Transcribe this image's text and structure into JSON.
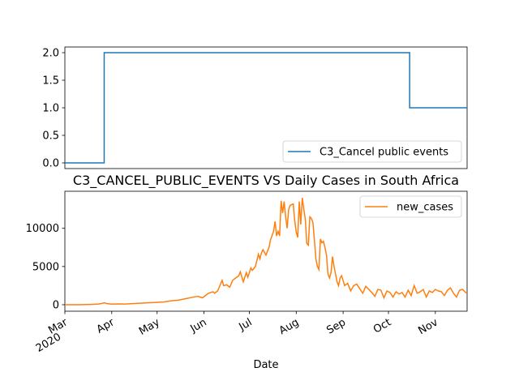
{
  "chart_data": [
    {
      "type": "line",
      "title": "",
      "xlabel": "",
      "ylabel": "",
      "ylim": [
        0,
        2
      ],
      "yticks": [
        0.0,
        0.5,
        1.0,
        1.5,
        2.0
      ],
      "ytick_labels": [
        "0.0",
        "0.5",
        "1.0",
        "1.5",
        "2.0"
      ],
      "legend_position": "bottom-right",
      "grid": false,
      "series": [
        {
          "name": "C3_Cancel public events",
          "color": "#1f77b4",
          "points": [
            [
              "2020-03-01",
              0
            ],
            [
              "2020-03-27",
              0
            ],
            [
              "2020-03-27",
              2
            ],
            [
              "2020-10-15",
              2
            ],
            [
              "2020-10-15",
              1
            ],
            [
              "2020-11-22",
              1
            ]
          ]
        }
      ]
    },
    {
      "type": "line",
      "title": "C3_CANCEL_PUBLIC_EVENTS VS Daily Cases in South Africa",
      "xlabel": "Date",
      "ylabel": "",
      "ylim": [
        0,
        14000
      ],
      "yticks": [
        0,
        5000,
        10000
      ],
      "ytick_labels": [
        "0",
        "5000",
        "10000"
      ],
      "xlim": [
        "2020-03-01",
        "2020-11-22"
      ],
      "xtick_labels": [
        {
          "date": "2020-03-01",
          "label": "Mar",
          "sublabel": "2020"
        },
        {
          "date": "2020-04-01",
          "label": "Apr"
        },
        {
          "date": "2020-05-01",
          "label": "May"
        },
        {
          "date": "2020-06-01",
          "label": "Jun"
        },
        {
          "date": "2020-07-01",
          "label": "Jul"
        },
        {
          "date": "2020-08-01",
          "label": "Aug"
        },
        {
          "date": "2020-09-01",
          "label": "Sep"
        },
        {
          "date": "2020-10-01",
          "label": "Oct"
        },
        {
          "date": "2020-11-01",
          "label": "Nov"
        }
      ],
      "legend_position": "top-right",
      "grid": false,
      "series": [
        {
          "name": "new_cases",
          "color": "#ff7f0e",
          "points": [
            [
              "2020-03-01",
              0
            ],
            [
              "2020-03-10",
              5
            ],
            [
              "2020-03-20",
              50
            ],
            [
              "2020-03-24",
              100
            ],
            [
              "2020-03-27",
              250
            ],
            [
              "2020-03-29",
              150
            ],
            [
              "2020-04-01",
              80
            ],
            [
              "2020-04-05",
              100
            ],
            [
              "2020-04-10",
              90
            ],
            [
              "2020-04-15",
              150
            ],
            [
              "2020-04-20",
              200
            ],
            [
              "2020-04-25",
              250
            ],
            [
              "2020-04-30",
              300
            ],
            [
              "2020-05-05",
              350
            ],
            [
              "2020-05-10",
              500
            ],
            [
              "2020-05-15",
              600
            ],
            [
              "2020-05-20",
              800
            ],
            [
              "2020-05-25",
              1000
            ],
            [
              "2020-05-28",
              1100
            ],
            [
              "2020-05-31",
              900
            ],
            [
              "2020-06-04",
              1500
            ],
            [
              "2020-06-07",
              1700
            ],
            [
              "2020-06-08",
              1500
            ],
            [
              "2020-06-10",
              1800
            ],
            [
              "2020-06-13",
              3200
            ],
            [
              "2020-06-14",
              2500
            ],
            [
              "2020-06-16",
              2600
            ],
            [
              "2020-06-18",
              2300
            ],
            [
              "2020-06-20",
              3200
            ],
            [
              "2020-06-22",
              3500
            ],
            [
              "2020-06-24",
              3800
            ],
            [
              "2020-06-25",
              4300
            ],
            [
              "2020-06-27",
              3000
            ],
            [
              "2020-06-29",
              4200
            ],
            [
              "2020-06-30",
              3600
            ],
            [
              "2020-07-02",
              4800
            ],
            [
              "2020-07-03",
              4500
            ],
            [
              "2020-07-05",
              5000
            ],
            [
              "2020-07-07",
              6600
            ],
            [
              "2020-07-08",
              6000
            ],
            [
              "2020-07-09",
              6800
            ],
            [
              "2020-07-10",
              7200
            ],
            [
              "2020-07-12",
              6500
            ],
            [
              "2020-07-14",
              7500
            ],
            [
              "2020-07-15",
              8500
            ],
            [
              "2020-07-17",
              9600
            ],
            [
              "2020-07-18",
              10900
            ],
            [
              "2020-07-19",
              9000
            ],
            [
              "2020-07-20",
              9600
            ],
            [
              "2020-07-21",
              9000
            ],
            [
              "2020-07-22",
              13600
            ],
            [
              "2020-07-23",
              12000
            ],
            [
              "2020-07-24",
              13500
            ],
            [
              "2020-07-25",
              11500
            ],
            [
              "2020-07-26",
              10000
            ],
            [
              "2020-07-27",
              12500
            ],
            [
              "2020-07-28",
              13000
            ],
            [
              "2020-07-30",
              13200
            ],
            [
              "2020-07-31",
              11000
            ],
            [
              "2020-08-01",
              9500
            ],
            [
              "2020-08-02",
              8800
            ],
            [
              "2020-08-03",
              13500
            ],
            [
              "2020-08-04",
              10500
            ],
            [
              "2020-08-05",
              14000
            ],
            [
              "2020-08-06",
              12500
            ],
            [
              "2020-08-07",
              11200
            ],
            [
              "2020-08-08",
              8000
            ],
            [
              "2020-08-09",
              7800
            ],
            [
              "2020-08-10",
              11500
            ],
            [
              "2020-08-11",
              11300
            ],
            [
              "2020-08-12",
              10800
            ],
            [
              "2020-08-13",
              8500
            ],
            [
              "2020-08-14",
              6000
            ],
            [
              "2020-08-15",
              5000
            ],
            [
              "2020-08-16",
              4600
            ],
            [
              "2020-08-17",
              8600
            ],
            [
              "2020-08-18",
              8100
            ],
            [
              "2020-08-19",
              8300
            ],
            [
              "2020-08-20",
              7500
            ],
            [
              "2020-08-21",
              6500
            ],
            [
              "2020-08-22",
              4000
            ],
            [
              "2020-08-23",
              3500
            ],
            [
              "2020-08-24",
              4200
            ],
            [
              "2020-08-25",
              6300
            ],
            [
              "2020-08-26",
              5000
            ],
            [
              "2020-08-27",
              4000
            ],
            [
              "2020-08-28",
              3000
            ],
            [
              "2020-08-29",
              2500
            ],
            [
              "2020-08-30",
              3500
            ],
            [
              "2020-08-31",
              3800
            ],
            [
              "2020-09-02",
              2500
            ],
            [
              "2020-09-04",
              2800
            ],
            [
              "2020-09-06",
              1800
            ],
            [
              "2020-09-08",
              2500
            ],
            [
              "2020-09-10",
              2700
            ],
            [
              "2020-09-12",
              2100
            ],
            [
              "2020-09-14",
              1500
            ],
            [
              "2020-09-16",
              2400
            ],
            [
              "2020-09-18",
              2000
            ],
            [
              "2020-09-20",
              1600
            ],
            [
              "2020-09-22",
              1100
            ],
            [
              "2020-09-24",
              2000
            ],
            [
              "2020-09-26",
              1900
            ],
            [
              "2020-09-28",
              900
            ],
            [
              "2020-09-30",
              1800
            ],
            [
              "2020-10-02",
              1600
            ],
            [
              "2020-10-04",
              1000
            ],
            [
              "2020-10-06",
              1700
            ],
            [
              "2020-10-08",
              1400
            ],
            [
              "2020-10-10",
              1600
            ],
            [
              "2020-10-12",
              1000
            ],
            [
              "2020-10-14",
              1900
            ],
            [
              "2020-10-16",
              1200
            ],
            [
              "2020-10-18",
              2500
            ],
            [
              "2020-10-20",
              1500
            ],
            [
              "2020-10-22",
              1700
            ],
            [
              "2020-10-24",
              2000
            ],
            [
              "2020-10-26",
              1000
            ],
            [
              "2020-10-28",
              1800
            ],
            [
              "2020-10-30",
              1600
            ],
            [
              "2020-11-01",
              2000
            ],
            [
              "2020-11-03",
              1800
            ],
            [
              "2020-11-05",
              1700
            ],
            [
              "2020-11-07",
              1200
            ],
            [
              "2020-11-09",
              1900
            ],
            [
              "2020-11-11",
              2200
            ],
            [
              "2020-11-13",
              1500
            ],
            [
              "2020-11-15",
              1000
            ],
            [
              "2020-11-17",
              1900
            ],
            [
              "2020-11-19",
              2000
            ],
            [
              "2020-11-21",
              1600
            ],
            [
              "2020-11-22",
              1500
            ]
          ]
        }
      ]
    }
  ]
}
